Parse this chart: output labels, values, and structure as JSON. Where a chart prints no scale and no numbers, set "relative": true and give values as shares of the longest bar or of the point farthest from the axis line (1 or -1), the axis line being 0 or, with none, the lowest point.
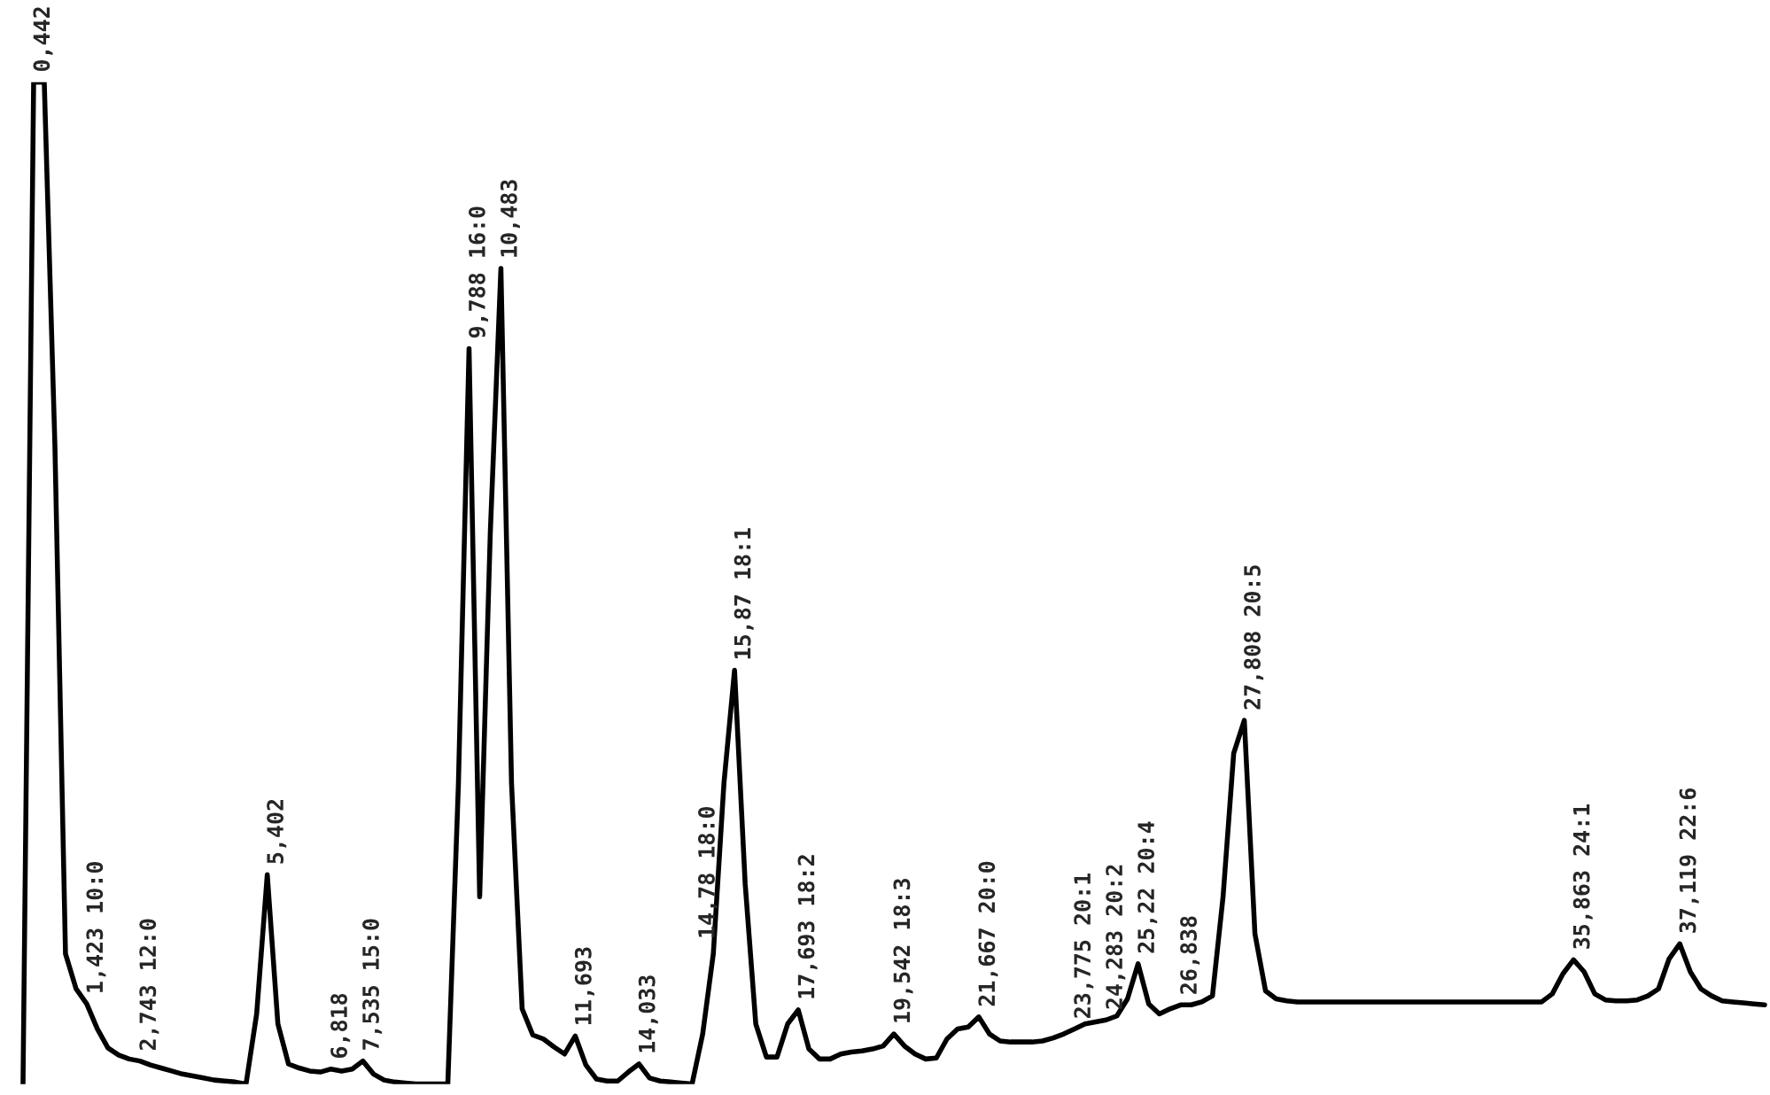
{
  "chart_data": {
    "type": "line",
    "relative": true,
    "tick_labels": false,
    "categories": [
      null,
      null,
      null,
      null,
      null,
      null,
      null,
      null,
      null,
      null,
      null,
      null,
      null,
      null,
      null,
      null,
      null,
      null,
      null,
      null,
      null,
      null,
      null,
      null,
      null,
      null,
      null,
      null,
      null,
      null,
      null,
      null,
      null,
      null,
      null,
      null,
      null,
      null,
      null,
      null,
      null,
      null,
      null,
      null,
      null,
      null,
      null,
      null,
      null,
      null,
      null,
      null,
      null,
      null,
      null,
      null,
      null,
      null,
      null,
      null,
      null,
      null,
      null,
      null,
      null,
      null,
      null,
      null,
      null,
      null,
      null,
      null,
      null,
      null,
      null,
      null,
      null,
      null,
      null,
      null,
      null,
      null,
      null,
      null,
      null,
      null,
      null,
      null,
      null,
      null,
      null,
      null,
      null,
      null,
      null,
      null,
      null,
      null,
      null,
      null,
      null,
      null,
      null,
      null,
      null,
      null,
      null,
      null,
      null,
      null,
      null,
      null,
      null,
      null,
      null,
      null,
      null,
      null,
      null,
      null,
      null,
      null,
      null,
      null,
      null,
      null,
      null,
      null,
      null,
      null,
      null,
      null,
      null,
      null,
      null,
      null,
      null,
      null,
      null,
      null,
      null,
      null,
      null,
      null,
      null,
      null,
      null,
      null,
      null,
      null,
      null,
      null,
      null,
      null,
      null,
      null,
      null,
      null,
      null,
      null,
      null,
      null,
      null,
      null,
      null
    ],
    "series": [
      {
        "color": "#000000",
        "line_style": "solid",
        "marker": "none",
        "values": [
          0,
          1,
          1,
          0.639,
          0.13,
          0.095,
          0.08,
          0.055,
          0.036,
          0.029,
          0.025,
          0.023,
          0.019,
          0.016,
          0.013,
          0.01,
          0.008,
          0.006,
          0.004,
          0.003,
          0.002,
          0,
          0.07,
          0.209,
          0.06,
          0.02,
          0.016,
          0.013,
          0.012,
          0.015,
          0.013,
          0.015,
          0.023,
          0.01,
          0.004,
          0.002,
          0.001,
          0,
          0,
          0,
          0,
          0.3,
          0.734,
          0.187,
          0.55,
          0.814,
          0.3,
          0.075,
          0.049,
          0.045,
          0.037,
          0.03,
          0.048,
          0.019,
          0.005,
          0.003,
          0.003,
          0.012,
          0.02,
          0.006,
          0.003,
          0.002,
          0.001,
          0,
          0.05,
          0.13,
          0.3,
          0.413,
          0.2,
          0.06,
          0.027,
          0.027,
          0.06,
          0.074,
          0.035,
          0.025,
          0.025,
          0.03,
          0.032,
          0.033,
          0.035,
          0.038,
          0.05,
          0.038,
          0.03,
          0.025,
          0.026,
          0.045,
          0.055,
          0.057,
          0.067,
          0.05,
          0.043,
          0.042,
          0.042,
          0.042,
          0.043,
          0.046,
          0.05,
          0.055,
          0.06,
          0.062,
          0.064,
          0.068,
          0.085,
          0.12,
          0.08,
          0.07,
          0.075,
          0.079,
          0.079,
          0.082,
          0.088,
          0.187,
          0.33,
          0.363,
          0.15,
          0.093,
          0.085,
          0.083,
          0.082,
          0.082,
          0.082,
          0.082,
          0.082,
          0.082,
          0.082,
          0.082,
          0.082,
          0.082,
          0.082,
          0.082,
          0.082,
          0.082,
          0.082,
          0.082,
          0.082,
          0.082,
          0.082,
          0.082,
          0.082,
          0.082,
          0.082,
          0.082,
          0.09,
          0.11,
          0.124,
          0.112,
          0.09,
          0.084,
          0.083,
          0.083,
          0.084,
          0.088,
          0.095,
          0.125,
          0.14,
          0.112,
          0.095,
          0.088,
          0.083,
          0.082,
          0.081,
          0.08,
          0.079
        ]
      }
    ],
    "annotations": [
      {
        "text": "0,442",
        "y": 1
      },
      {
        "text": "1,423 10:0",
        "y": 0.08
      },
      {
        "text": "2,743 12:0",
        "y": 0.023
      },
      {
        "text": "5,402",
        "y": 0.209
      },
      {
        "text": "6,818",
        "y": 0.015
      },
      {
        "text": "7,535 15:0",
        "y": 0.023
      },
      {
        "text": "9,788 16:0",
        "y": 0.734
      },
      {
        "text": "10,483",
        "y": 0.814
      },
      {
        "text": "11,693",
        "y": 0.048
      },
      {
        "text": "14,033",
        "y": 0.02
      },
      {
        "text": "14,78 18:0",
        "y": 0.13
      },
      {
        "text": "15,87 18:1",
        "y": 0.413
      },
      {
        "text": "17,693 18:2",
        "y": 0.074
      },
      {
        "text": "19,542 18:3",
        "y": 0.05
      },
      {
        "text": "21,667 20:0",
        "y": 0.067
      },
      {
        "text": "23,775 20:1",
        "y": 0.055
      },
      {
        "text": "24,283 20:2",
        "y": 0.064
      },
      {
        "text": "25,22 20:4",
        "y": 0.12
      },
      {
        "text": "26,838",
        "y": 0.079
      },
      {
        "text": "27,808 20:5",
        "y": 0.363
      },
      {
        "text": "35,863 24:1",
        "y": 0.124
      },
      {
        "text": "37,119 22:6",
        "y": 0.14
      }
    ]
  }
}
